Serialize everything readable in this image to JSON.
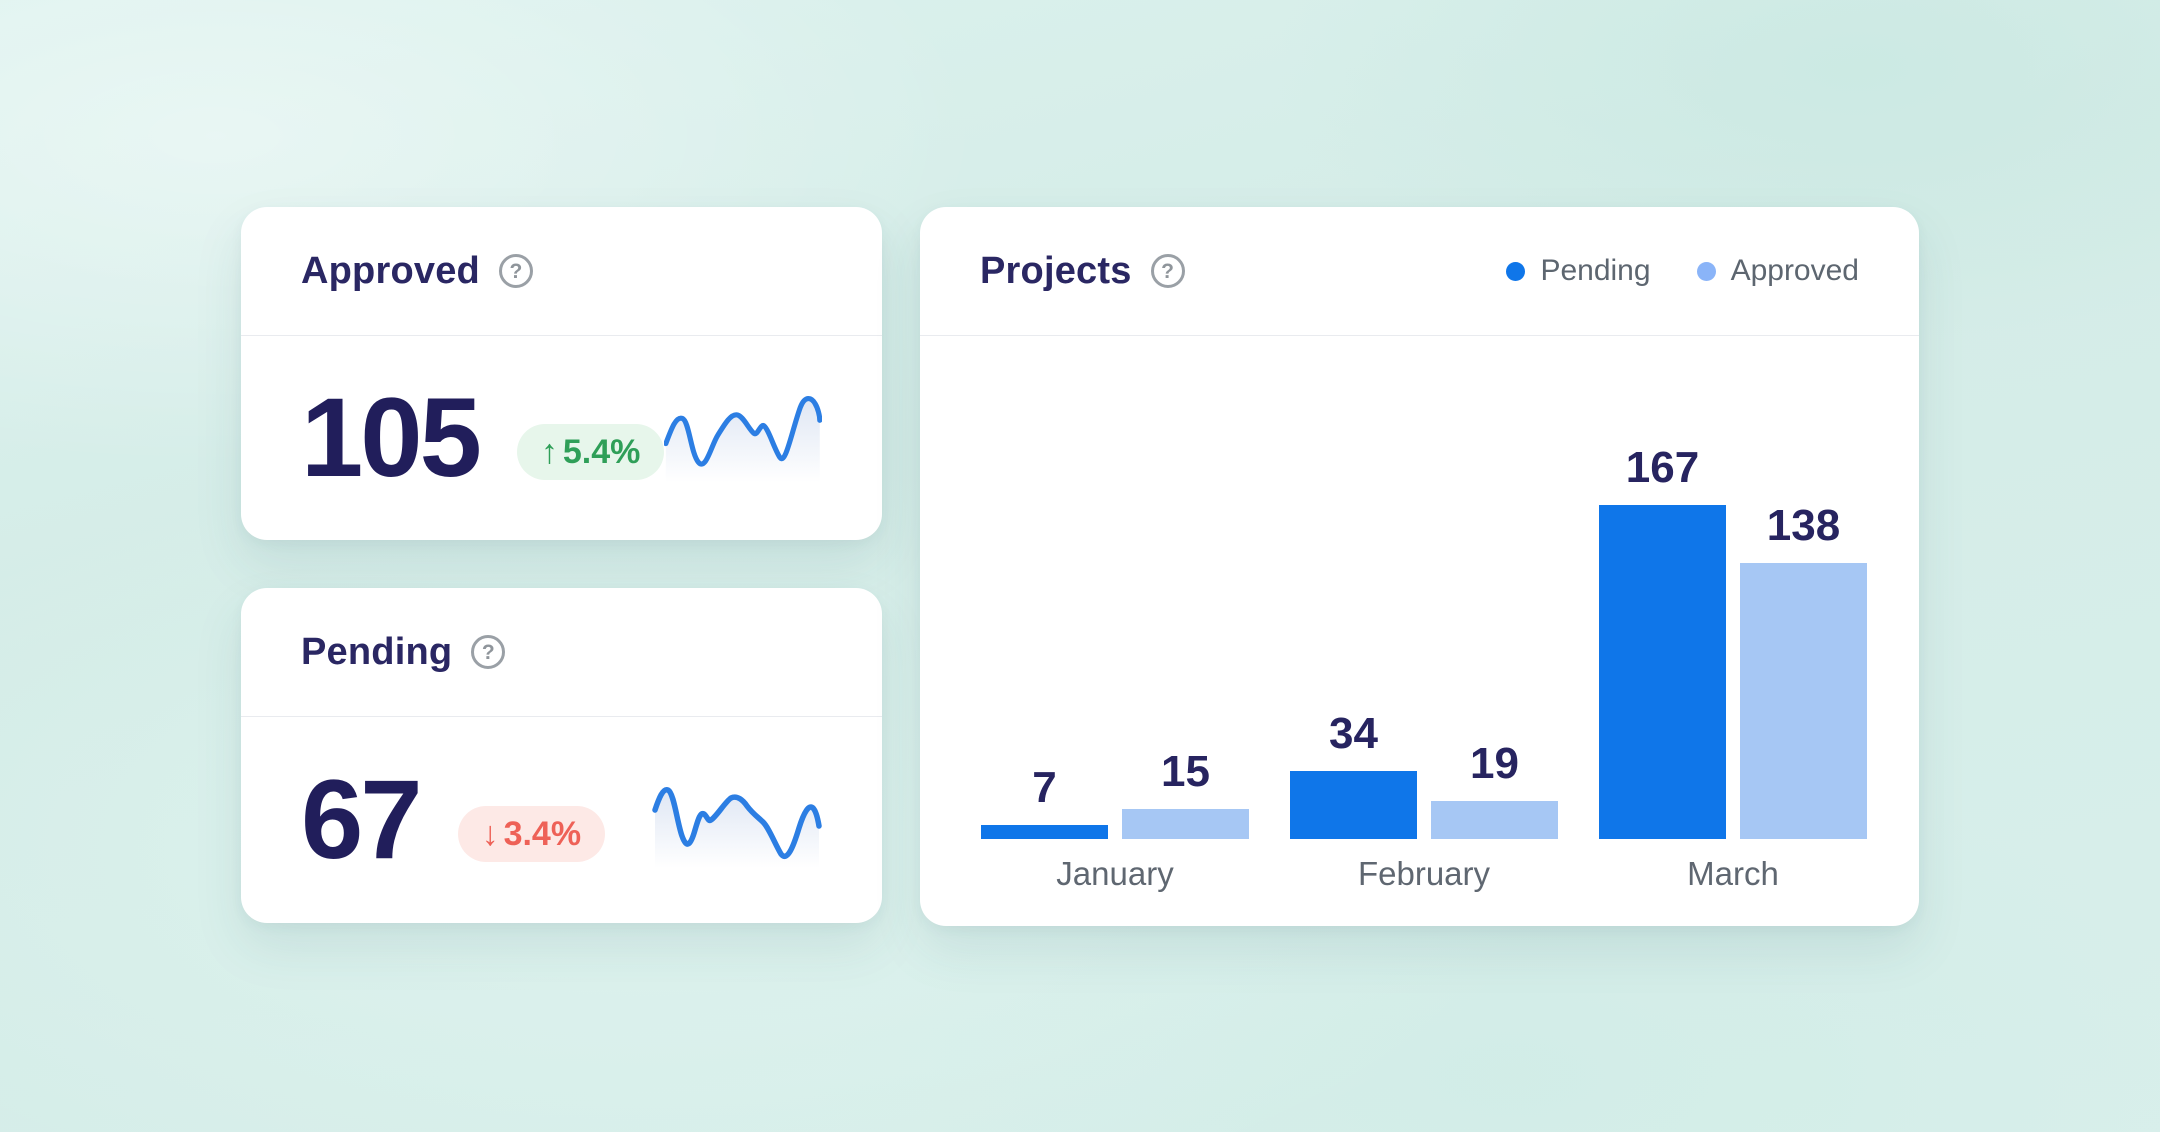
{
  "page": {
    "background_color": "#d7eeea"
  },
  "help_glyph": "?",
  "cards": {
    "approved": {
      "title": "Approved",
      "value": "105",
      "delta_arrow": "↑",
      "delta": "5.4%",
      "delta_direction": "up",
      "delta_color": "#2f9f58",
      "delta_bg": "#e7f6eb"
    },
    "pending": {
      "title": "Pending",
      "value": "67",
      "delta_arrow": "↓",
      "delta": "3.4%",
      "delta_direction": "down",
      "delta_color": "#ee6157",
      "delta_bg": "#fde9e6"
    },
    "projects": {
      "title": "Projects",
      "legend": [
        {
          "label": "Pending",
          "color": "#0f76e9"
        },
        {
          "label": "Approved",
          "color": "#8ab4f8"
        }
      ]
    }
  },
  "chart_data": {
    "type": "bar",
    "title": "Projects",
    "categories": [
      "January",
      "February",
      "March"
    ],
    "series": [
      {
        "name": "Pending",
        "color": "#0f76e9",
        "values": [
          7,
          34,
          167
        ]
      },
      {
        "name": "Approved",
        "color": "#a6c7f4",
        "values": [
          15,
          19,
          138
        ]
      }
    ],
    "value_labels": true,
    "ylim": [
      0,
      180
    ],
    "grid": false,
    "axes_visible": false,
    "legend_position": "top-right"
  },
  "colors": {
    "accent_blue": "#0f76e9",
    "light_blue": "#a6c7f4",
    "navy_text": "#232060",
    "gray_text": "#5f6771",
    "sparkline_stroke": "#2c7ee3"
  }
}
